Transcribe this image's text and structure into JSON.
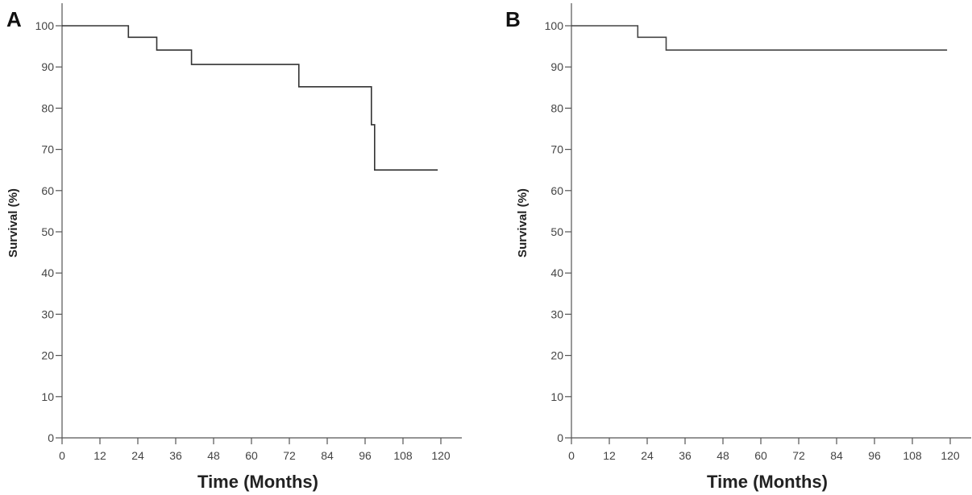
{
  "chart_data": [
    {
      "type": "line",
      "panel_label": "A",
      "xlabel": "Time (Months)",
      "ylabel": "Survival (%)",
      "xlim": [
        0,
        120
      ],
      "ylim": [
        0,
        100
      ],
      "x_ticks": [
        0,
        12,
        24,
        36,
        48,
        60,
        72,
        84,
        96,
        108,
        120
      ],
      "y_ticks": [
        0,
        10,
        20,
        30,
        40,
        50,
        60,
        70,
        80,
        90,
        100
      ],
      "step": true,
      "grid": false,
      "line_color": "#333333",
      "series": [
        {
          "x": [
            0,
            21,
            21,
            30,
            30,
            41,
            41,
            75,
            75,
            98,
            98,
            99,
            99,
            119
          ],
          "y": [
            100,
            100,
            97.2,
            97.2,
            94.1,
            94.1,
            90.6,
            90.6,
            85.2,
            85.2,
            76,
            76,
            65,
            65
          ]
        }
      ]
    },
    {
      "type": "line",
      "panel_label": "B",
      "xlabel": "Time (Months)",
      "ylabel": "Survival (%)",
      "xlim": [
        0,
        120
      ],
      "ylim": [
        0,
        100
      ],
      "x_ticks": [
        0,
        12,
        24,
        36,
        48,
        60,
        72,
        84,
        96,
        108,
        120
      ],
      "y_ticks": [
        0,
        10,
        20,
        30,
        40,
        50,
        60,
        70,
        80,
        90,
        100
      ],
      "step": true,
      "grid": false,
      "line_color": "#444444",
      "series": [
        {
          "x": [
            0,
            21,
            21,
            30,
            30,
            119
          ],
          "y": [
            100,
            100,
            97.2,
            97.2,
            94.1,
            94.1
          ]
        }
      ]
    }
  ]
}
